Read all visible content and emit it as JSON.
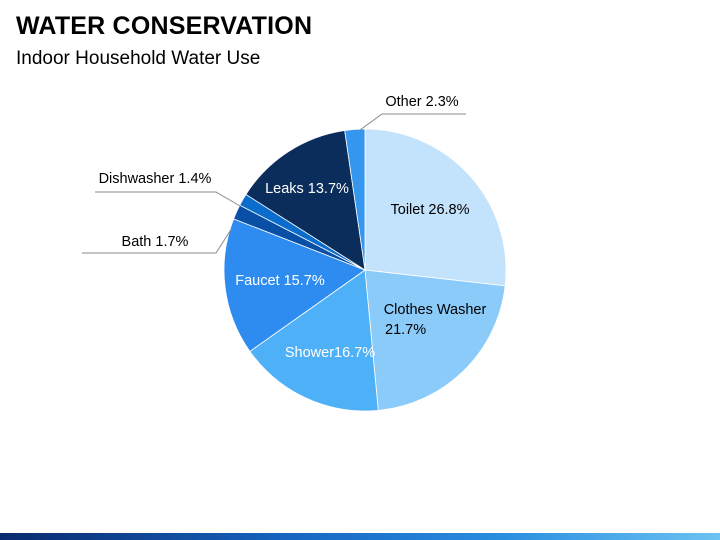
{
  "header": {
    "title": "WATER CONSERVATION",
    "subtitle": "Indoor Household Water Use"
  },
  "chart_data": {
    "type": "pie",
    "title": "",
    "start_angle_deg": 90,
    "direction": "clockwise",
    "slices": [
      {
        "category": "Toilet",
        "label": "Toilet 26.8%",
        "value": 26.8,
        "color": "#c3e2fc",
        "label_color": "#000000",
        "label_placement": "inside"
      },
      {
        "category": "Clothes Washer",
        "label_lines": [
          "Clothes Washer",
          "21.7%"
        ],
        "value": 21.7,
        "color": "#8acbfa",
        "label_color": "#000000",
        "label_placement": "inside"
      },
      {
        "category": "Shower",
        "label": "Shower16.7%",
        "value": 16.7,
        "color": "#4eb0f7",
        "label_color": "#ffffff",
        "label_placement": "inside"
      },
      {
        "category": "Faucet",
        "label": "Faucet 15.7%",
        "value": 15.7,
        "color": "#2e8cf0",
        "label_color": "#ffffff",
        "label_placement": "inside"
      },
      {
        "category": "Bath",
        "label": "Bath 1.7%",
        "value": 1.7,
        "color": "#0a4fa6",
        "label_color": "#000000",
        "label_placement": "outside-left"
      },
      {
        "category": "Dishwasher",
        "label": "Dishwasher 1.4%",
        "value": 1.4,
        "color": "#0a6ccb",
        "label_color": "#000000",
        "label_placement": "outside-left"
      },
      {
        "category": "Leaks",
        "label": "Leaks 13.7%",
        "value": 13.7,
        "color": "#0b2d5c",
        "label_color": "#ffffff",
        "label_placement": "inside"
      },
      {
        "category": "Other",
        "label": "Other 2.3%",
        "value": 2.3,
        "color": "#3596ef",
        "label_color": "#000000",
        "label_placement": "outside-top"
      }
    ]
  }
}
